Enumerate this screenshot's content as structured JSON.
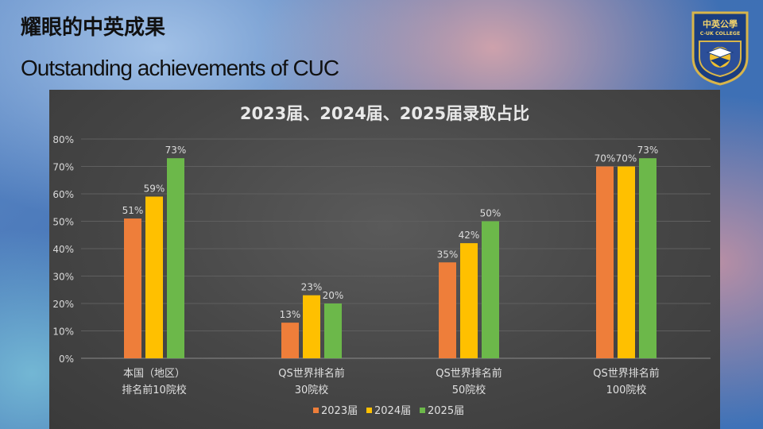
{
  "slide": {
    "title": "耀眼的中英成果",
    "subtitle": "Outstanding achievements of CUC"
  },
  "logo": {
    "top_text": "中英公學",
    "bottom_text": "C-UK COLLEGE",
    "icon": "school-crest-icon"
  },
  "chart_data": {
    "type": "bar",
    "title": "2023届、2024届、2025届录取占比",
    "categories": [
      [
        "本国（地区）",
        "排名前10院校"
      ],
      [
        "QS世界排名前",
        "30院校"
      ],
      [
        "QS世界排名前",
        "50院校"
      ],
      [
        "QS世界排名前",
        "100院校"
      ]
    ],
    "series": [
      {
        "name": "2023届",
        "values": [
          51,
          13,
          35,
          70
        ],
        "labels": [
          "51%",
          "13%",
          "35%",
          "70%"
        ],
        "color": "#ee7e3a"
      },
      {
        "name": "2024届",
        "values": [
          59,
          23,
          42,
          70
        ],
        "labels": [
          "59%",
          "23%",
          "42%",
          "70%"
        ],
        "color": "#ffc000"
      },
      {
        "name": "2025届",
        "values": [
          73,
          20,
          50,
          73
        ],
        "labels": [
          "73%",
          "20%",
          "50%",
          "73%"
        ],
        "color": "#6cb84a"
      }
    ],
    "ylim": [
      0,
      80
    ],
    "yticks": [
      0,
      10,
      20,
      30,
      40,
      50,
      60,
      70,
      80
    ],
    "ytick_labels": [
      "0%",
      "10%",
      "20%",
      "30%",
      "40%",
      "50%",
      "60%",
      "70%",
      "80%"
    ],
    "grid": true,
    "legend_position": "bottom"
  }
}
